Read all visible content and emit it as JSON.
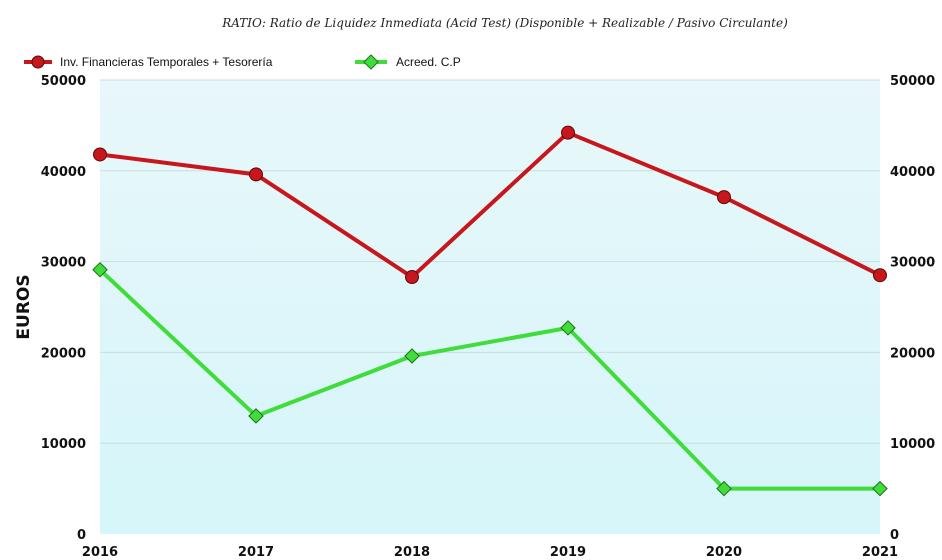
{
  "chart_data": {
    "type": "line",
    "title": "RATIO: Ratio de Liquidez Inmediata (Acid Test) (Disponible + Realizable / Pasivo Circulante)",
    "ylabel": "EUROS",
    "xlabel": "",
    "categories": [
      "2016",
      "2017",
      "2018",
      "2019",
      "2020",
      "2021"
    ],
    "ylim": [
      0,
      50000
    ],
    "yticks": [
      "0",
      "10000",
      "20000",
      "30000",
      "40000",
      "50000"
    ],
    "grid": true,
    "legend_position": "top-left",
    "series": [
      {
        "name": "Inv. Financieras Temporales + Tesorería",
        "values": [
          41800,
          39600,
          28300,
          44200,
          37100,
          28500
        ],
        "color": "#c8161d",
        "marker": "circle"
      },
      {
        "name": "Acreed. C.P",
        "values": [
          29100,
          13000,
          19600,
          22700,
          5000,
          5000
        ],
        "color": "#3fdc3a",
        "marker": "diamond"
      }
    ],
    "background_gradient": [
      "#e8f7f9",
      "#d5f6fa"
    ]
  }
}
